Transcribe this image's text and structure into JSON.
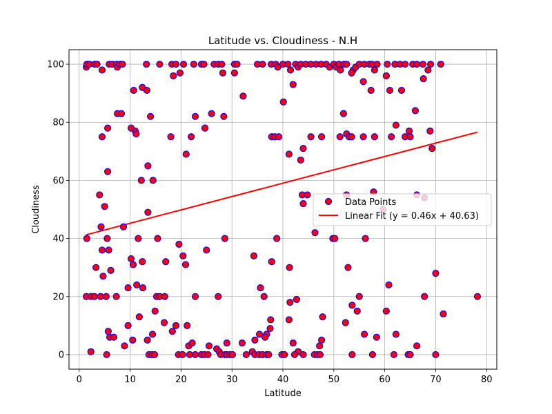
{
  "chart_data": {
    "type": "scatter",
    "title": "Latitude vs. Cloudiness - N.H",
    "xlabel": "Latitude",
    "ylabel": "Cloudiness",
    "xlim": [
      -2,
      82
    ],
    "ylim": [
      -5,
      105
    ],
    "xticks": [
      0,
      10,
      20,
      30,
      40,
      50,
      60,
      70,
      80
    ],
    "yticks": [
      0,
      20,
      40,
      60,
      80,
      100
    ],
    "grid": true,
    "legend_position": "center-right",
    "point_fill": "#ff0000",
    "point_edge": "#0000ff",
    "fit_color": "#ff0000",
    "series": [
      {
        "name": "Data Points",
        "points": [
          [
            1.4,
            99
          ],
          [
            1.5,
            100
          ],
          [
            2.0,
            100
          ],
          [
            3.0,
            100
          ],
          [
            3.5,
            100
          ],
          [
            5.9,
            100
          ],
          [
            6.5,
            100
          ],
          [
            7.3,
            100
          ],
          [
            7.5,
            99
          ],
          [
            8.0,
            100
          ],
          [
            8.5,
            100
          ],
          [
            13.2,
            100
          ],
          [
            15.8,
            100
          ],
          [
            18.2,
            100
          ],
          [
            19.0,
            100
          ],
          [
            20.5,
            100
          ],
          [
            22.5,
            100
          ],
          [
            24.0,
            100
          ],
          [
            24.5,
            100
          ],
          [
            26.5,
            100
          ],
          [
            27.3,
            100
          ],
          [
            28.0,
            100
          ],
          [
            30.5,
            100
          ],
          [
            31.0,
            100
          ],
          [
            35.0,
            100
          ],
          [
            36.0,
            100
          ],
          [
            37.7,
            100
          ],
          [
            38.6,
            100
          ],
          [
            39.0,
            99
          ],
          [
            40.0,
            100
          ],
          [
            41.0,
            100
          ],
          [
            41.5,
            98
          ],
          [
            42.5,
            100
          ],
          [
            43.0,
            99
          ],
          [
            43.5,
            100
          ],
          [
            44.5,
            100
          ],
          [
            45.5,
            100
          ],
          [
            46.5,
            100
          ],
          [
            47.5,
            100
          ],
          [
            48.5,
            100
          ],
          [
            49.2,
            99
          ],
          [
            50.0,
            100
          ],
          [
            50.5,
            99
          ],
          [
            51.0,
            100
          ],
          [
            51.3,
            98
          ],
          [
            52.0,
            100
          ],
          [
            52.5,
            100
          ],
          [
            53.5,
            97
          ],
          [
            53.8,
            98
          ],
          [
            54.3,
            99
          ],
          [
            55.0,
            100
          ],
          [
            56.0,
            100
          ],
          [
            57.0,
            100
          ],
          [
            57.5,
            100
          ],
          [
            58.0,
            98
          ],
          [
            58.5,
            100
          ],
          [
            60.5,
            100
          ],
          [
            62.0,
            100
          ],
          [
            63.0,
            100
          ],
          [
            64.0,
            100
          ],
          [
            65.5,
            100
          ],
          [
            66.3,
            100
          ],
          [
            67.5,
            100
          ],
          [
            68.5,
            98
          ],
          [
            69.0,
            100
          ],
          [
            71.0,
            100
          ],
          [
            4.5,
            98
          ],
          [
            19.8,
            97
          ],
          [
            18.5,
            96
          ],
          [
            28.2,
            97
          ],
          [
            30.5,
            97
          ],
          [
            53.5,
            97
          ],
          [
            60.3,
            96
          ],
          [
            7.5,
            83
          ],
          [
            8.3,
            83
          ],
          [
            10.7,
            91
          ],
          [
            12.4,
            92
          ],
          [
            13.3,
            91
          ],
          [
            14.0,
            82
          ],
          [
            22.8,
            82
          ],
          [
            26.0,
            83
          ],
          [
            28.4,
            82
          ],
          [
            32.2,
            89
          ],
          [
            40.1,
            87
          ],
          [
            42.0,
            93
          ],
          [
            51.9,
            83
          ],
          [
            55.8,
            94
          ],
          [
            57.3,
            91
          ],
          [
            61.0,
            91
          ],
          [
            63.3,
            91
          ],
          [
            66.0,
            84
          ],
          [
            67.6,
            95
          ],
          [
            5.6,
            78
          ],
          [
            10.2,
            78
          ],
          [
            11.0,
            77
          ],
          [
            11.2,
            76
          ],
          [
            24.7,
            78
          ],
          [
            62.2,
            79
          ],
          [
            4.5,
            75
          ],
          [
            18.0,
            75
          ],
          [
            22.0,
            75
          ],
          [
            37.8,
            75
          ],
          [
            38.4,
            75
          ],
          [
            39.2,
            75
          ],
          [
            45.5,
            75
          ],
          [
            47.6,
            75
          ],
          [
            51.2,
            75
          ],
          [
            52.5,
            76
          ],
          [
            53.0,
            75
          ],
          [
            53.5,
            75
          ],
          [
            55.8,
            75
          ],
          [
            58.0,
            75
          ],
          [
            61.3,
            75
          ],
          [
            64.0,
            75
          ],
          [
            64.8,
            77
          ],
          [
            65.0,
            75
          ],
          [
            68.9,
            77
          ],
          [
            69.3,
            71
          ],
          [
            44.0,
            71
          ],
          [
            41.2,
            69
          ],
          [
            21.0,
            69
          ],
          [
            43.5,
            67
          ],
          [
            13.5,
            65
          ],
          [
            5.6,
            63
          ],
          [
            12.2,
            60
          ],
          [
            14.5,
            60
          ],
          [
            43.8,
            55
          ],
          [
            44.8,
            55
          ],
          [
            52.5,
            55
          ],
          [
            57.8,
            56
          ],
          [
            66.3,
            55
          ],
          [
            67.8,
            54
          ],
          [
            4.0,
            55
          ],
          [
            44.0,
            52
          ],
          [
            5.0,
            51
          ],
          [
            13.5,
            49
          ],
          [
            59.7,
            50
          ],
          [
            4.3,
            44
          ],
          [
            8.7,
            44
          ],
          [
            1.5,
            40
          ],
          [
            5.5,
            40
          ],
          [
            11.6,
            40
          ],
          [
            15.4,
            40
          ],
          [
            28.6,
            40
          ],
          [
            38.8,
            40
          ],
          [
            49.8,
            40
          ],
          [
            50.2,
            40
          ],
          [
            56.2,
            40
          ],
          [
            46.3,
            42
          ],
          [
            4.5,
            36
          ],
          [
            5.8,
            36
          ],
          [
            19.6,
            38
          ],
          [
            25.0,
            36
          ],
          [
            10.2,
            33
          ],
          [
            10.6,
            31
          ],
          [
            12.4,
            32
          ],
          [
            17.0,
            32
          ],
          [
            20.4,
            34
          ],
          [
            20.9,
            31
          ],
          [
            34.3,
            34
          ],
          [
            37.8,
            32
          ],
          [
            3.3,
            30
          ],
          [
            6.2,
            29
          ],
          [
            4.7,
            27
          ],
          [
            41.3,
            30
          ],
          [
            52.8,
            30
          ],
          [
            70.0,
            28
          ],
          [
            1.4,
            20
          ],
          [
            2.3,
            20
          ],
          [
            3.0,
            20
          ],
          [
            4.2,
            20
          ],
          [
            5.3,
            20
          ],
          [
            7.3,
            20
          ],
          [
            15.2,
            20
          ],
          [
            15.8,
            20
          ],
          [
            16.8,
            20
          ],
          [
            22.8,
            20
          ],
          [
            27.3,
            20
          ],
          [
            36.3,
            20
          ],
          [
            55.0,
            20
          ],
          [
            67.8,
            20
          ],
          [
            78.2,
            20
          ],
          [
            9.6,
            23
          ],
          [
            11.3,
            24
          ],
          [
            12.5,
            23
          ],
          [
            35.6,
            23
          ],
          [
            60.8,
            24
          ],
          [
            41.4,
            18
          ],
          [
            42.7,
            19
          ],
          [
            53.6,
            17
          ],
          [
            54.6,
            15
          ],
          [
            60.3,
            15
          ],
          [
            71.5,
            14
          ],
          [
            11.8,
            13
          ],
          [
            14.9,
            15
          ],
          [
            47.8,
            13
          ],
          [
            37.6,
            12
          ],
          [
            41.2,
            12
          ],
          [
            9.6,
            10
          ],
          [
            16.7,
            11
          ],
          [
            19.0,
            10
          ],
          [
            21.2,
            10
          ],
          [
            52.3,
            11
          ],
          [
            37.5,
            9
          ],
          [
            5.7,
            8
          ],
          [
            8.9,
            3
          ],
          [
            18.3,
            8
          ],
          [
            14.4,
            7
          ],
          [
            35.4,
            7
          ],
          [
            36.8,
            7
          ],
          [
            56.0,
            7
          ],
          [
            58.4,
            6
          ],
          [
            62.2,
            7
          ],
          [
            6.0,
            6
          ],
          [
            6.8,
            6
          ],
          [
            10.5,
            5
          ],
          [
            13.4,
            5
          ],
          [
            34.5,
            5
          ],
          [
            36.5,
            6
          ],
          [
            47.6,
            5
          ],
          [
            47.2,
            3
          ],
          [
            66.3,
            3
          ],
          [
            21.5,
            3
          ],
          [
            22.2,
            4
          ],
          [
            25.5,
            3
          ],
          [
            29.0,
            4
          ],
          [
            32.0,
            4
          ],
          [
            42.0,
            4
          ],
          [
            2.3,
            1
          ],
          [
            27.0,
            2
          ],
          [
            27.5,
            1
          ],
          [
            34.0,
            1
          ],
          [
            43.0,
            1
          ],
          [
            5.4,
            0
          ],
          [
            13.7,
            0
          ],
          [
            14.3,
            0
          ],
          [
            14.8,
            0
          ],
          [
            19.5,
            0
          ],
          [
            20.3,
            0
          ],
          [
            21.7,
            0
          ],
          [
            22.8,
            0
          ],
          [
            24.0,
            0
          ],
          [
            24.6,
            0
          ],
          [
            25.3,
            0
          ],
          [
            27.8,
            0
          ],
          [
            28.6,
            0
          ],
          [
            29.0,
            0
          ],
          [
            29.6,
            0
          ],
          [
            30.1,
            0
          ],
          [
            32.8,
            0
          ],
          [
            34.5,
            0
          ],
          [
            35.3,
            0
          ],
          [
            36.0,
            0
          ],
          [
            36.8,
            0
          ],
          [
            37.2,
            0
          ],
          [
            39.8,
            0
          ],
          [
            40.3,
            0
          ],
          [
            42.3,
            0
          ],
          [
            44.0,
            0
          ],
          [
            46.2,
            0
          ],
          [
            46.8,
            0
          ],
          [
            47.3,
            0
          ],
          [
            53.6,
            0
          ],
          [
            57.6,
            0
          ],
          [
            61.8,
            0
          ],
          [
            64.6,
            0
          ],
          [
            65.0,
            0
          ],
          [
            70.0,
            0
          ]
        ]
      },
      {
        "name": "Linear Fit (y = 0.46x + 40.63)",
        "type": "line",
        "slope": 0.46,
        "intercept": 40.63,
        "x_range": [
          1.4,
          78.2
        ]
      }
    ]
  }
}
